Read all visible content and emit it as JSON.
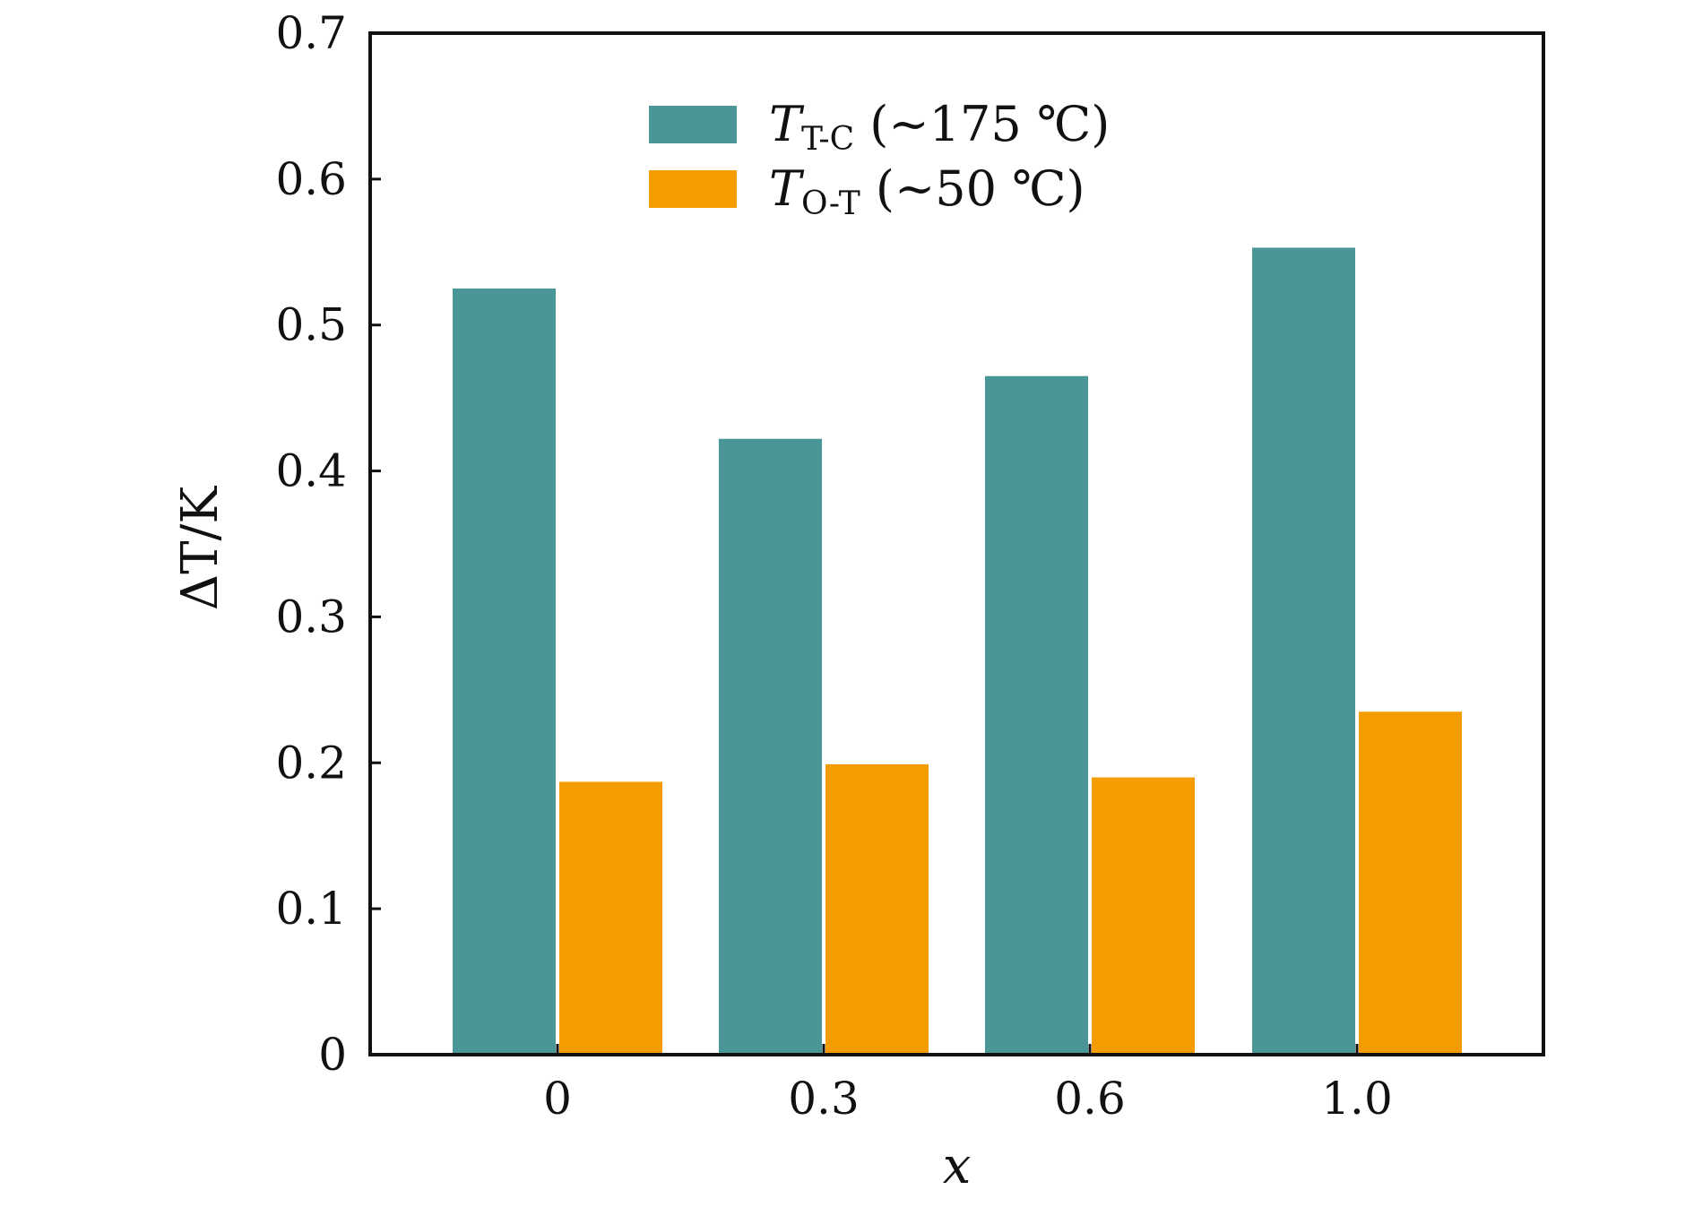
{
  "chart_data": {
    "type": "bar",
    "title": "",
    "xlabel": "x",
    "ylabel": "ΔT/K",
    "categories": [
      "0",
      "0.3",
      "0.6",
      "1.0"
    ],
    "ylim": [
      0,
      0.7
    ],
    "yticks": [
      "0",
      "0.1",
      "0.2",
      "0.3",
      "0.4",
      "0.5",
      "0.6",
      "0.7"
    ],
    "grid": false,
    "legend_position": "top-center",
    "series": [
      {
        "name": "T_T-C (~175 ℃)",
        "legend_main": "T",
        "legend_sub": "T-C",
        "legend_rest": " (~175 ℃)",
        "color": "#4a9696",
        "values": [
          0.525,
          0.422,
          0.465,
          0.553
        ]
      },
      {
        "name": "T_O-T (~50 ℃)",
        "legend_main": "T",
        "legend_sub": "O-T",
        "legend_rest": " (~50 ℃)",
        "color": "#f59c00",
        "values": [
          0.187,
          0.199,
          0.19,
          0.235
        ]
      }
    ]
  }
}
